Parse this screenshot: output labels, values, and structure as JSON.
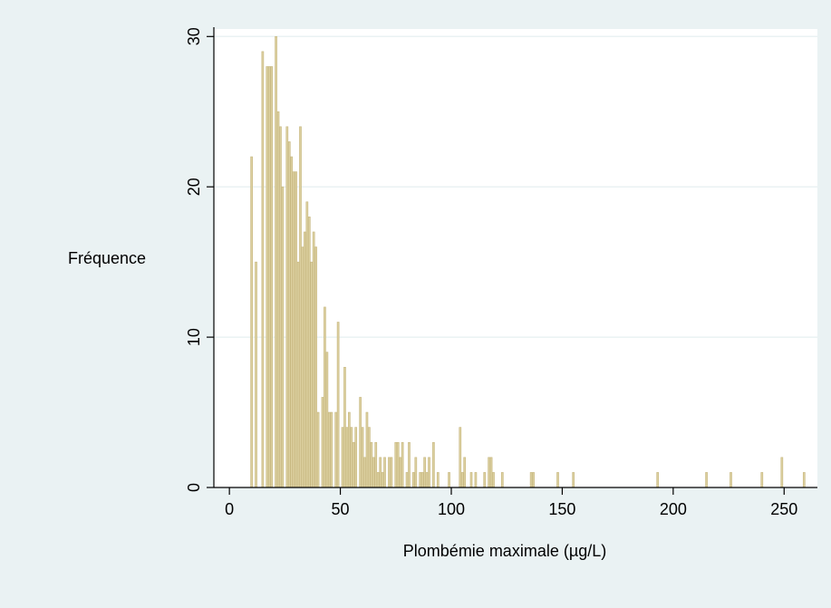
{
  "colors": {
    "outer_bg": "#eaf2f3",
    "plot_bg": "#ffffff",
    "bar_fill": "#dcd0a0",
    "bar_stroke": "#c6b67e",
    "grid": "#eaf2f3",
    "axis": "#000000"
  },
  "chart_data": {
    "type": "bar",
    "title": "",
    "xlabel": "Plombémie maximale (µg/L)",
    "ylabel": "Fréquence",
    "xlim": [
      -7,
      265
    ],
    "ylim": [
      0,
      30.5
    ],
    "xticks": [
      0,
      50,
      100,
      150,
      200,
      250
    ],
    "yticks": [
      0,
      10,
      20,
      30
    ],
    "grid": "horizontal",
    "legend": "none",
    "bin_width": 1,
    "x": [
      10,
      12,
      15,
      17,
      18,
      19,
      21,
      22,
      23,
      24,
      26,
      27,
      28,
      29,
      30,
      31,
      32,
      33,
      34,
      35,
      36,
      37,
      38,
      39,
      40,
      42,
      43,
      44,
      45,
      46,
      48,
      49,
      51,
      52,
      53,
      54,
      55,
      56,
      57,
      59,
      60,
      61,
      62,
      63,
      64,
      65,
      66,
      67,
      68,
      69,
      70,
      72,
      73,
      75,
      76,
      77,
      78,
      80,
      81,
      83,
      84,
      86,
      87,
      88,
      89,
      90,
      92,
      94,
      99,
      104,
      105,
      106,
      109,
      111,
      115,
      117,
      118,
      119,
      123,
      136,
      137,
      148,
      155,
      193,
      215,
      226,
      240,
      249,
      259
    ],
    "values": [
      22,
      15,
      29,
      28,
      28,
      28,
      30,
      25,
      24,
      20,
      24,
      23,
      22,
      21,
      21,
      15,
      24,
      16,
      17,
      19,
      18,
      15,
      17,
      16,
      5,
      6,
      12,
      9,
      5,
      5,
      5,
      11,
      4,
      8,
      4,
      5,
      4,
      3,
      4,
      6,
      4,
      2,
      5,
      4,
      3,
      2,
      3,
      1,
      2,
      1,
      2,
      2,
      2,
      3,
      3,
      2,
      3,
      1,
      3,
      1,
      2,
      1,
      1,
      2,
      1,
      2,
      3,
      1,
      1,
      4,
      1,
      2,
      1,
      1,
      1,
      2,
      2,
      1,
      1,
      1,
      1,
      1,
      1,
      1,
      1,
      1,
      1,
      2,
      1
    ]
  }
}
